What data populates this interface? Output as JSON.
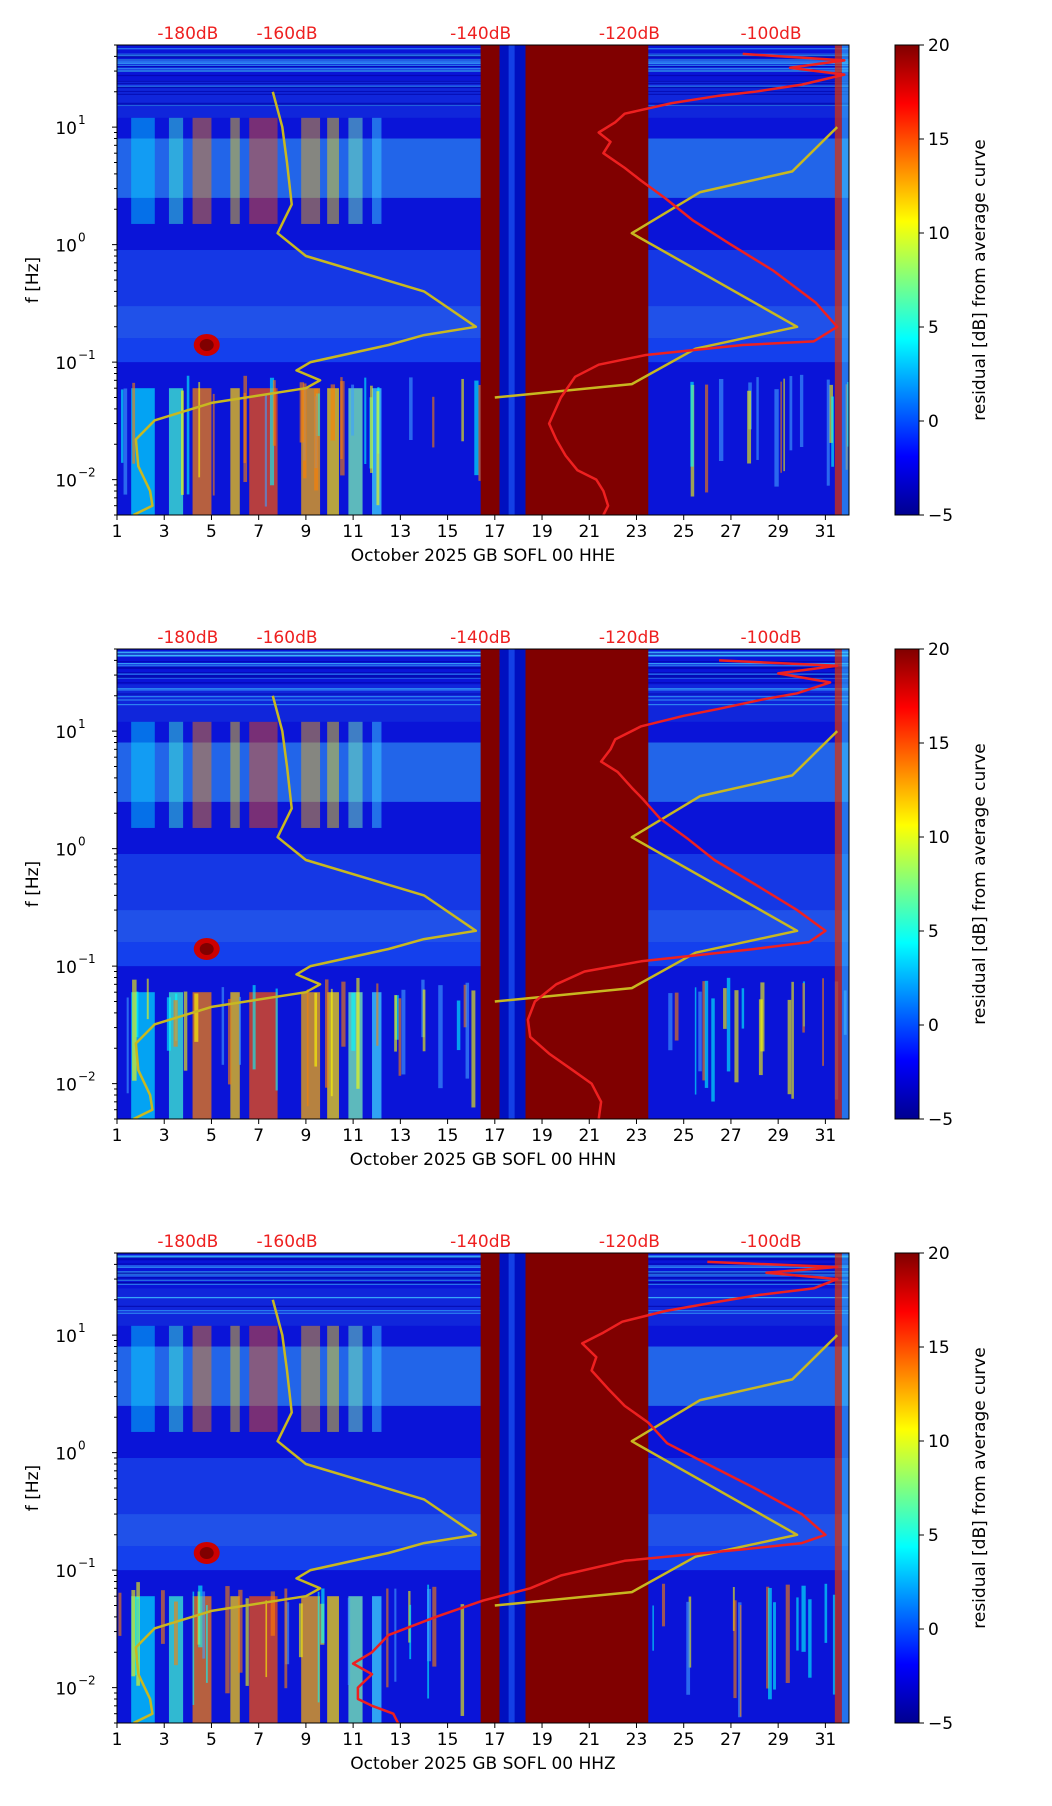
{
  "figure": {
    "colorbar": {
      "label": "residual [dB] from average curve",
      "range": [
        -5,
        20
      ],
      "ticks": [
        "20",
        "15",
        "10",
        "5",
        "0",
        "−5"
      ],
      "tick_values": [
        20,
        15,
        10,
        5,
        0,
        -5
      ],
      "colormap": "jet"
    },
    "ylabel": "f [Hz]",
    "ytick_labels": [
      "10",
      "10",
      "10",
      "10"
    ],
    "ytick_exponents": [
      "1",
      "0",
      "−1",
      "−2"
    ],
    "ytick_values": [
      10,
      1,
      0.1,
      0.01
    ],
    "top_labels": [
      "-180dB",
      "-160dB",
      "-140dB",
      "-120dB",
      "-100dB"
    ],
    "top_label_days": [
      4,
      8.2,
      16.4,
      22.7,
      28.7
    ],
    "xtick_labels": [
      "1",
      "3",
      "5",
      "7",
      "9",
      "11",
      "13",
      "15",
      "17",
      "19",
      "21",
      "23",
      "25",
      "27",
      "29",
      "31"
    ],
    "xtick_values": [
      1,
      3,
      5,
      7,
      9,
      11,
      13,
      15,
      17,
      19,
      21,
      23,
      25,
      27,
      29,
      31
    ],
    "colors": {
      "psd_curve": "#ee2020",
      "reference_curve": "#c8b820",
      "top_label": "#ee2020",
      "background_low": "#00008f",
      "saturated": "#800000"
    }
  },
  "chart_data": [
    {
      "type": "heatmap",
      "title": "",
      "xlabel": "October 2025 GB SOFL 00 HHE",
      "ylabel": "f [Hz]",
      "xlim": [
        1,
        32
      ],
      "ylim": [
        0.005,
        50
      ],
      "yscale": "log",
      "saturated_day_ranges": [
        [
          16.4,
          17.2
        ],
        [
          18.3,
          23.5
        ]
      ],
      "gap_day_ranges": [
        [
          17.2,
          18.3
        ]
      ],
      "series": [
        {
          "name": "reference curve",
          "color": "#c8b820",
          "points": [
            [
              1.7,
              0.005
            ],
            [
              2.5,
              0.006
            ],
            [
              2.4,
              0.008
            ],
            [
              1.9,
              0.013
            ],
            [
              1.8,
              0.022
            ],
            [
              2.6,
              0.032
            ],
            [
              5,
              0.045
            ],
            [
              9,
              0.06
            ],
            [
              9.6,
              0.07
            ],
            [
              8.6,
              0.085
            ],
            [
              9.2,
              0.1
            ],
            [
              12.5,
              0.14
            ],
            [
              14,
              0.17
            ],
            [
              16.2,
              0.2
            ],
            [
              14,
              0.4
            ],
            [
              9,
              0.8
            ],
            [
              7.8,
              1.25
            ],
            [
              8.4,
              2.2
            ],
            [
              8.2,
              5
            ],
            [
              8,
              10
            ],
            [
              7.6,
              20
            ]
          ]
        },
        {
          "name": "reference curve",
          "color": "#c8b820",
          "points": [
            [
              17,
              0.05
            ],
            [
              22.8,
              0.065
            ],
            [
              25.5,
              0.13
            ],
            [
              29.8,
              0.2
            ],
            [
              22.8,
              1.25
            ],
            [
              25.7,
              2.8
            ],
            [
              29.6,
              4.2
            ],
            [
              31.5,
              10
            ]
          ]
        },
        {
          "name": "PSD curve",
          "color": "#ee2020",
          "points": [
            [
              21.6,
              0.005
            ],
            [
              21.8,
              0.006
            ],
            [
              21.6,
              0.008
            ],
            [
              21.3,
              0.01
            ],
            [
              20.5,
              0.012
            ],
            [
              20,
              0.016
            ],
            [
              19.6,
              0.022
            ],
            [
              19.3,
              0.03
            ],
            [
              19.8,
              0.05
            ],
            [
              20.4,
              0.075
            ],
            [
              21.4,
              0.095
            ],
            [
              23.4,
              0.115
            ],
            [
              27.5,
              0.14
            ],
            [
              30.5,
              0.15
            ],
            [
              31.5,
              0.2
            ],
            [
              30.6,
              0.32
            ],
            [
              28.8,
              0.6
            ],
            [
              27,
              1.0
            ],
            [
              25.4,
              1.6
            ],
            [
              24.2,
              2.5
            ],
            [
              23.2,
              3.5
            ],
            [
              22.5,
              4.5
            ],
            [
              21.6,
              6
            ],
            [
              21.9,
              7.5
            ],
            [
              21.4,
              9
            ],
            [
              22.1,
              11
            ],
            [
              22.5,
              13
            ],
            [
              24.5,
              16
            ],
            [
              26.5,
              18.5
            ],
            [
              28,
              20
            ],
            [
              30,
              23
            ],
            [
              31.8,
              28
            ],
            [
              29.5,
              32
            ],
            [
              31.8,
              37
            ],
            [
              27.5,
              42
            ]
          ]
        }
      ]
    },
    {
      "type": "heatmap",
      "title": "",
      "xlabel": "October 2025 GB SOFL 00 HHN",
      "ylabel": "f [Hz]",
      "xlim": [
        1,
        32
      ],
      "ylim": [
        0.005,
        50
      ],
      "yscale": "log",
      "saturated_day_ranges": [
        [
          16.4,
          17.2
        ],
        [
          18.3,
          23.5
        ]
      ],
      "gap_day_ranges": [
        [
          17.2,
          18.3
        ]
      ],
      "series": [
        {
          "name": "reference curve",
          "color": "#c8b820",
          "points": [
            [
              1.7,
              0.005
            ],
            [
              2.5,
              0.006
            ],
            [
              2.4,
              0.008
            ],
            [
              1.9,
              0.013
            ],
            [
              1.8,
              0.022
            ],
            [
              2.6,
              0.032
            ],
            [
              5,
              0.045
            ],
            [
              9,
              0.06
            ],
            [
              9.6,
              0.07
            ],
            [
              8.6,
              0.085
            ],
            [
              9.2,
              0.1
            ],
            [
              12.5,
              0.14
            ],
            [
              14,
              0.17
            ],
            [
              16.2,
              0.2
            ],
            [
              14,
              0.4
            ],
            [
              9,
              0.8
            ],
            [
              7.8,
              1.25
            ],
            [
              8.4,
              2.2
            ],
            [
              8.2,
              5
            ],
            [
              8,
              10
            ],
            [
              7.6,
              20
            ]
          ]
        },
        {
          "name": "reference curve",
          "color": "#c8b820",
          "points": [
            [
              17,
              0.05
            ],
            [
              22.8,
              0.065
            ],
            [
              25.5,
              0.13
            ],
            [
              29.8,
              0.2
            ],
            [
              22.8,
              1.25
            ],
            [
              25.7,
              2.8
            ],
            [
              29.6,
              4.2
            ],
            [
              31.5,
              10
            ]
          ]
        },
        {
          "name": "PSD curve",
          "color": "#ee2020",
          "points": [
            [
              21.4,
              0.005
            ],
            [
              21.5,
              0.007
            ],
            [
              21.1,
              0.01
            ],
            [
              20.3,
              0.013
            ],
            [
              19.3,
              0.018
            ],
            [
              18.5,
              0.025
            ],
            [
              18.4,
              0.035
            ],
            [
              18.7,
              0.05
            ],
            [
              19.6,
              0.07
            ],
            [
              20.8,
              0.09
            ],
            [
              23.2,
              0.11
            ],
            [
              28,
              0.14
            ],
            [
              30.3,
              0.16
            ],
            [
              31,
              0.2
            ],
            [
              29.8,
              0.3
            ],
            [
              28,
              0.5
            ],
            [
              26.3,
              0.8
            ],
            [
              25.2,
              1.2
            ],
            [
              24,
              1.8
            ],
            [
              23.3,
              2.6
            ],
            [
              22.8,
              3.3
            ],
            [
              22.2,
              4.5
            ],
            [
              21.5,
              5.5
            ],
            [
              21.9,
              7
            ],
            [
              22.1,
              8.5
            ],
            [
              23.2,
              11
            ],
            [
              25,
              13.5
            ],
            [
              26.5,
              15.5
            ],
            [
              28.3,
              18.5
            ],
            [
              29.8,
              21
            ],
            [
              31.2,
              26
            ],
            [
              29,
              31
            ],
            [
              31.5,
              36
            ],
            [
              26.5,
              40
            ]
          ]
        }
      ]
    },
    {
      "type": "heatmap",
      "title": "",
      "xlabel": "October 2025 GB SOFL 00 HHZ",
      "ylabel": "f [Hz]",
      "xlim": [
        1,
        32
      ],
      "ylim": [
        0.005,
        50
      ],
      "yscale": "log",
      "saturated_day_ranges": [
        [
          16.4,
          17.2
        ],
        [
          18.3,
          23.5
        ]
      ],
      "gap_day_ranges": [
        [
          17.2,
          18.3
        ]
      ],
      "series": [
        {
          "name": "reference curve",
          "color": "#c8b820",
          "points": [
            [
              1.7,
              0.005
            ],
            [
              2.5,
              0.006
            ],
            [
              2.4,
              0.008
            ],
            [
              1.9,
              0.013
            ],
            [
              1.8,
              0.022
            ],
            [
              2.6,
              0.032
            ],
            [
              5,
              0.045
            ],
            [
              9,
              0.06
            ],
            [
              9.6,
              0.07
            ],
            [
              8.6,
              0.085
            ],
            [
              9.2,
              0.1
            ],
            [
              12.5,
              0.14
            ],
            [
              14,
              0.17
            ],
            [
              16.2,
              0.2
            ],
            [
              14,
              0.4
            ],
            [
              9,
              0.8
            ],
            [
              7.8,
              1.25
            ],
            [
              8.4,
              2.2
            ],
            [
              8.2,
              5
            ],
            [
              8,
              10
            ],
            [
              7.6,
              20
            ]
          ]
        },
        {
          "name": "reference curve",
          "color": "#c8b820",
          "points": [
            [
              17,
              0.05
            ],
            [
              22.8,
              0.065
            ],
            [
              25.5,
              0.13
            ],
            [
              29.8,
              0.2
            ],
            [
              22.8,
              1.25
            ],
            [
              25.7,
              2.8
            ],
            [
              29.6,
              4.2
            ],
            [
              31.5,
              10
            ]
          ]
        },
        {
          "name": "PSD curve",
          "color": "#ee2020",
          "points": [
            [
              12.9,
              0.005
            ],
            [
              12.7,
              0.006
            ],
            [
              11.8,
              0.007
            ],
            [
              11.2,
              0.008
            ],
            [
              11.2,
              0.01
            ],
            [
              11.8,
              0.013
            ],
            [
              11,
              0.016
            ],
            [
              11.8,
              0.02
            ],
            [
              12.5,
              0.028
            ],
            [
              14.5,
              0.04
            ],
            [
              16.5,
              0.055
            ],
            [
              18.5,
              0.07
            ],
            [
              19.8,
              0.09
            ],
            [
              22.5,
              0.12
            ],
            [
              27.5,
              0.15
            ],
            [
              30,
              0.17
            ],
            [
              31,
              0.2
            ],
            [
              30,
              0.3
            ],
            [
              28,
              0.5
            ],
            [
              26,
              0.8
            ],
            [
              24.3,
              1.2
            ],
            [
              23.5,
              1.8
            ],
            [
              22.5,
              2.5
            ],
            [
              21.8,
              3.5
            ],
            [
              21.1,
              5
            ],
            [
              21.3,
              6.5
            ],
            [
              20.7,
              8.5
            ],
            [
              21.6,
              10.5
            ],
            [
              22.4,
              13
            ],
            [
              24.2,
              16
            ],
            [
              26.3,
              19
            ],
            [
              28.2,
              22
            ],
            [
              30.5,
              25
            ],
            [
              31.5,
              30
            ],
            [
              28.5,
              34
            ],
            [
              31.5,
              38
            ],
            [
              26,
              42
            ]
          ]
        }
      ]
    }
  ]
}
